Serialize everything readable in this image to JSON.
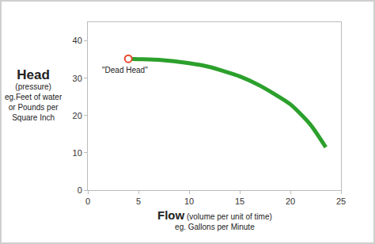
{
  "chart_data": {
    "type": "line",
    "x": [
      4,
      5,
      7,
      10,
      12,
      15,
      17,
      20,
      22,
      23.5
    ],
    "values": [
      35.2,
      35.1,
      34.9,
      34,
      33,
      30.5,
      28,
      23,
      17.5,
      11.5
    ],
    "color": "#2ca02c",
    "xlim": [
      0,
      25
    ],
    "ylim": [
      0,
      45
    ],
    "xticks": [
      0,
      5,
      10,
      15,
      20,
      25
    ],
    "yticks": [
      0,
      10,
      20,
      30,
      40
    ],
    "grid": false,
    "x_label": {
      "title": "Flow",
      "note": "(volume per unit of time)",
      "example": [
        "eg. Gallons per Minute"
      ]
    },
    "y_label": {
      "title": "Head",
      "note": "(pressure)",
      "example": [
        "eg.Feet of water",
        "or Pounds per",
        "Square Inch"
      ]
    },
    "annotations": [
      {
        "text": "\"Dead Head\"",
        "x": 4,
        "y": 35.2,
        "marker": "circle",
        "color": "#e8472a"
      }
    ]
  }
}
